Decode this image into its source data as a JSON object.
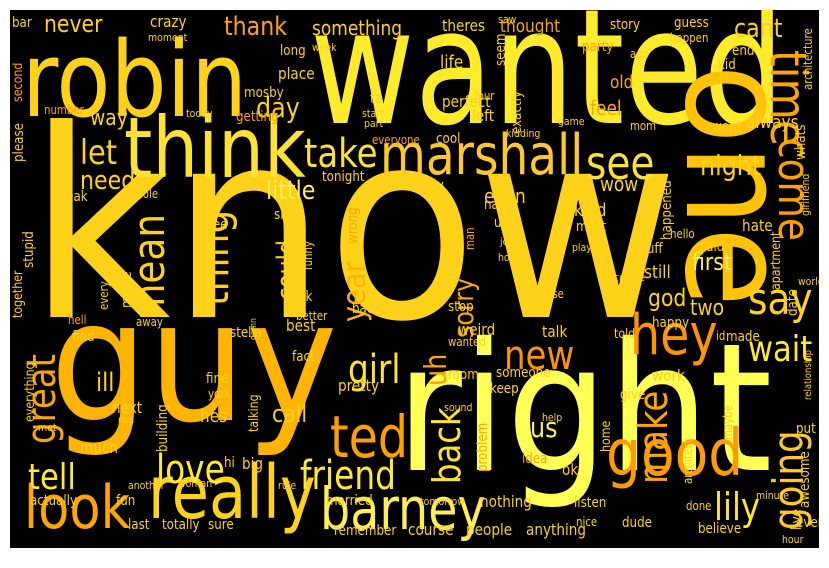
{
  "words": [
    {
      "text": "know",
      "color": "#ffd21a"
    },
    {
      "text": "right",
      "color": "#ffff55"
    },
    {
      "text": "guy",
      "color": "#ffb400"
    },
    {
      "text": "wanted",
      "color": "#ffea2c"
    },
    {
      "text": "one",
      "color": "#ffc30a"
    },
    {
      "text": "robin",
      "color": "#ffd21a"
    },
    {
      "text": "think",
      "color": "#ffe234"
    },
    {
      "text": "marshall",
      "color": "#ffc82a"
    },
    {
      "text": "really",
      "color": "#ffd21a"
    },
    {
      "text": "barney",
      "color": "#ffee55"
    },
    {
      "text": "good",
      "color": "#ff9a00"
    },
    {
      "text": "look",
      "color": "#ffa500"
    },
    {
      "text": "hey",
      "color": "#ff9400"
    },
    {
      "text": "say",
      "color": "#ffd21a"
    },
    {
      "text": "time",
      "color": "#ffa500"
    },
    {
      "text": "come",
      "color": "#ffa000"
    },
    {
      "text": "see",
      "color": "#ffe03a"
    },
    {
      "text": "take",
      "color": "#ffe03a"
    },
    {
      "text": "let",
      "color": "#ffd21a"
    },
    {
      "text": "need",
      "color": "#ffd21a"
    },
    {
      "text": "mean",
      "color": "#ffd21a"
    },
    {
      "text": "thing",
      "color": "#ffd21a"
    },
    {
      "text": "ted",
      "color": "#ffa000"
    },
    {
      "text": "friend",
      "color": "#ffea2c"
    },
    {
      "text": "love",
      "color": "#ffea2c"
    },
    {
      "text": "girl",
      "color": "#ffe234"
    },
    {
      "text": "great",
      "color": "#ffa500"
    },
    {
      "text": "tell",
      "color": "#ffea2c"
    },
    {
      "text": "going",
      "color": "#ffc82a"
    },
    {
      "text": "make",
      "color": "#ffa500"
    },
    {
      "text": "lily",
      "color": "#ffe234"
    },
    {
      "text": "new",
      "color": "#ff9400"
    },
    {
      "text": "back",
      "color": "#ffe234"
    },
    {
      "text": "wait",
      "color": "#ffea2c"
    },
    {
      "text": "night",
      "color": "#ffd21a"
    },
    {
      "text": "year",
      "color": "#ffb400"
    },
    {
      "text": "sorry",
      "color": "#ffa500"
    },
    {
      "text": "uh",
      "color": "#ffa500"
    },
    {
      "text": "never",
      "color": "#ffd21a"
    },
    {
      "text": "thank",
      "color": "#ffa500"
    },
    {
      "text": "something",
      "color": "#ffd21a"
    },
    {
      "text": "cant",
      "color": "#ffd21a"
    },
    {
      "text": "day",
      "color": "#ffd21a"
    },
    {
      "text": "little",
      "color": "#ffee55"
    },
    {
      "text": "could",
      "color": "#ffd21a"
    },
    {
      "text": "first",
      "color": "#ffee55"
    },
    {
      "text": "two",
      "color": "#ffd21a"
    },
    {
      "text": "god",
      "color": "#ffd21a"
    },
    {
      "text": "call",
      "color": "#ffd21a"
    },
    {
      "text": "us",
      "color": "#ffee55"
    },
    {
      "text": "ill",
      "color": "#ffd21a"
    },
    {
      "text": "always",
      "color": "#ffd21a"
    },
    {
      "text": "still",
      "color": "#ffd21a"
    },
    {
      "text": "even",
      "color": "#ffd21a"
    },
    {
      "text": "way",
      "color": "#ffd21a"
    },
    {
      "text": "thought",
      "color": "#ffa500"
    },
    {
      "text": "theres",
      "color": "#ffd21a"
    },
    {
      "text": "crazy",
      "color": "#ffd21a"
    },
    {
      "text": "moment",
      "color": "#ffd21a"
    },
    {
      "text": "bar",
      "color": "#ffd21a"
    },
    {
      "text": "story",
      "color": "#ffd21a"
    },
    {
      "text": "guess",
      "color": "#ffd21a"
    },
    {
      "text": "happen",
      "color": "#ffd21a"
    },
    {
      "text": "end",
      "color": "#ffd21a"
    },
    {
      "text": "kid",
      "color": "#ffd21a"
    },
    {
      "text": "architecture",
      "color": "#ffd21a"
    },
    {
      "text": "ago",
      "color": "#ffd21a"
    },
    {
      "text": "old",
      "color": "#ffa500"
    },
    {
      "text": "party",
      "color": "#ffa500"
    },
    {
      "text": "life",
      "color": "#ffd21a"
    },
    {
      "text": "seem",
      "color": "#ffd21a"
    },
    {
      "text": "exactly",
      "color": "#ffd21a"
    },
    {
      "text": "four",
      "color": "#ffd21a"
    },
    {
      "text": "perfect",
      "color": "#ffd21a"
    },
    {
      "text": "left",
      "color": "#ffd21a"
    },
    {
      "text": "saw",
      "color": "#ffd21a"
    },
    {
      "text": "long",
      "color": "#ffd21a"
    },
    {
      "text": "week",
      "color": "#ffd21a"
    },
    {
      "text": "place",
      "color": "#ffd21a"
    },
    {
      "text": "mosby",
      "color": "#ffd21a"
    },
    {
      "text": "getting",
      "color": "#ffa500"
    },
    {
      "text": "today",
      "color": "#ffd21a"
    },
    {
      "text": "ta",
      "color": "#ffd21a"
    },
    {
      "text": "start",
      "color": "#ffd21a"
    },
    {
      "text": "part",
      "color": "#ffd21a"
    },
    {
      "text": "second",
      "color": "#ffa500"
    },
    {
      "text": "number",
      "color": "#ffa500"
    },
    {
      "text": "please",
      "color": "#ffd21a"
    },
    {
      "text": "break",
      "color": "#ffd21a"
    },
    {
      "text": "whole",
      "color": "#ffd21a"
    },
    {
      "text": "tonight",
      "color": "#ffd21a"
    },
    {
      "text": "everyone",
      "color": "#ffa500"
    },
    {
      "text": "cool",
      "color": "#ffd21a"
    },
    {
      "text": "kidding",
      "color": "#ffd21a"
    },
    {
      "text": "game",
      "color": "#ffd21a"
    },
    {
      "text": "mom",
      "color": "#ffd21a"
    },
    {
      "text": "feel",
      "color": "#ffa500"
    },
    {
      "text": "went",
      "color": "#ffd21a"
    },
    {
      "text": "whats",
      "color": "#ffd21a"
    },
    {
      "text": "girlfriend",
      "color": "#ffd21a"
    },
    {
      "text": "wow",
      "color": "#ffd21a"
    },
    {
      "text": "zoey",
      "color": "#ffd21a"
    },
    {
      "text": "name",
      "color": "#ffd21a"
    },
    {
      "text": "kind",
      "color": "#ffd21a"
    },
    {
      "text": "must",
      "color": "#ffd21a"
    },
    {
      "text": "happened",
      "color": "#ffd21a"
    },
    {
      "text": "hate",
      "color": "#ffd21a"
    },
    {
      "text": "apartment",
      "color": "#ffd21a"
    },
    {
      "text": "world",
      "color": "#ffd21a"
    },
    {
      "text": "since",
      "color": "#ffd21a"
    },
    {
      "text": "three",
      "color": "#ffd21a"
    },
    {
      "text": "um",
      "color": "#ffd21a"
    },
    {
      "text": "job",
      "color": "#ffd21a"
    },
    {
      "text": "hot",
      "color": "#ffd21a"
    },
    {
      "text": "stuff",
      "color": "#ffd21a"
    },
    {
      "text": "said",
      "color": "#ffd21a"
    },
    {
      "text": "hello",
      "color": "#ffd21a"
    },
    {
      "text": "date",
      "color": "#ffd21a"
    },
    {
      "text": "couple",
      "color": "#ffd21a"
    },
    {
      "text": "play",
      "color": "#ffd21a"
    },
    {
      "text": "stupid",
      "color": "#ffd21a"
    },
    {
      "text": "together",
      "color": "#ffd21a"
    },
    {
      "text": "every",
      "color": "#ffd21a"
    },
    {
      "text": "movie",
      "color": "#ffd21a"
    },
    {
      "text": "wrong",
      "color": "#ffa500"
    },
    {
      "text": "man",
      "color": "#ffa500"
    },
    {
      "text": "funny",
      "color": "#ffd21a"
    },
    {
      "text": "ask",
      "color": "#ffd21a"
    },
    {
      "text": "bad",
      "color": "#ffd21a"
    },
    {
      "text": "cause",
      "color": "#ffd21a"
    },
    {
      "text": "lot",
      "color": "#ffd21a"
    },
    {
      "text": "stop",
      "color": "#ffd21a"
    },
    {
      "text": "weird",
      "color": "#ffd21a"
    },
    {
      "text": "talk",
      "color": "#ffd21a"
    },
    {
      "text": "told",
      "color": "#ffd21a"
    },
    {
      "text": "happy",
      "color": "#ffd21a"
    },
    {
      "text": "id",
      "color": "#ffd21a"
    },
    {
      "text": "made",
      "color": "#ffd21a"
    },
    {
      "text": "relationship",
      "color": "#ffd21a"
    },
    {
      "text": "hell",
      "color": "#ffa500"
    },
    {
      "text": "find",
      "color": "#ffd21a"
    },
    {
      "text": "away",
      "color": "#ffd21a"
    },
    {
      "text": "stella",
      "color": "#ffd21a"
    },
    {
      "text": "best",
      "color": "#ffd21a"
    },
    {
      "text": "better",
      "color": "#ffd21a"
    },
    {
      "text": "damn",
      "color": "#ffd21a"
    },
    {
      "text": "fact",
      "color": "#ffd21a"
    },
    {
      "text": "wanted",
      "color": "#ffd21a"
    },
    {
      "text": "room",
      "color": "#ffd21a"
    },
    {
      "text": "someone",
      "color": "#ffd21a"
    },
    {
      "text": "keep",
      "color": "#ffd21a"
    },
    {
      "text": "give",
      "color": "#ffd21a"
    },
    {
      "text": "work",
      "color": "#ffd21a"
    },
    {
      "text": "fine",
      "color": "#ffd21a"
    },
    {
      "text": "york",
      "color": "#ffd21a"
    },
    {
      "text": "everything",
      "color": "#ffd21a"
    },
    {
      "text": "next",
      "color": "#ffd21a"
    },
    {
      "text": "real",
      "color": "#ffd21a"
    },
    {
      "text": "building",
      "color": "#ffd21a"
    },
    {
      "text": "hes",
      "color": "#ffd21a"
    },
    {
      "text": "talking",
      "color": "#ffd21a"
    },
    {
      "text": "pretty",
      "color": "#ffd21a"
    },
    {
      "text": "sound",
      "color": "#ffd21a"
    },
    {
      "text": "home",
      "color": "#ffd21a"
    },
    {
      "text": "help",
      "color": "#ffd21a"
    },
    {
      "text": "architect",
      "color": "#ffd21a"
    },
    {
      "text": "maybe",
      "color": "#ffd21a"
    },
    {
      "text": "put",
      "color": "#ffd21a"
    },
    {
      "text": "awesome",
      "color": "#ffd21a"
    },
    {
      "text": "met",
      "color": "#ffd21a"
    },
    {
      "text": "much",
      "color": "#ffd21a"
    },
    {
      "text": "hi",
      "color": "#ffd21a"
    },
    {
      "text": "big",
      "color": "#ffd21a"
    },
    {
      "text": "problem",
      "color": "#ffa500"
    },
    {
      "text": "idea",
      "color": "#ffa500"
    },
    {
      "text": "ok",
      "color": "#ffd21a"
    },
    {
      "text": "rule",
      "color": "#ffd21a"
    },
    {
      "text": "another",
      "color": "#ffd21a"
    },
    {
      "text": "woman",
      "color": "#ffd21a"
    },
    {
      "text": "actually",
      "color": "#ffd21a"
    },
    {
      "text": "fun",
      "color": "#ffd21a"
    },
    {
      "text": "married",
      "color": "#ffd21a"
    },
    {
      "text": "tomorrow",
      "color": "#ffd21a"
    },
    {
      "text": "nothing",
      "color": "#ffd21a"
    },
    {
      "text": "listen",
      "color": "#ffd21a"
    },
    {
      "text": "done",
      "color": "#ffd21a"
    },
    {
      "text": "minute",
      "color": "#ffd21a"
    },
    {
      "text": "live",
      "color": "#ffd21a"
    },
    {
      "text": "last",
      "color": "#ffd21a"
    },
    {
      "text": "totally",
      "color": "#ffd21a"
    },
    {
      "text": "sure",
      "color": "#ffd21a"
    },
    {
      "text": "remember",
      "color": "#ffd21a"
    },
    {
      "text": "course",
      "color": "#ffd21a"
    },
    {
      "text": "people",
      "color": "#ffd21a"
    },
    {
      "text": "anything",
      "color": "#ffd21a"
    },
    {
      "text": "nice",
      "color": "#ffd21a"
    },
    {
      "text": "dude",
      "color": "#ffd21a"
    },
    {
      "text": "believe",
      "color": "#ffd21a"
    },
    {
      "text": "ever",
      "color": "#ffd21a"
    },
    {
      "text": "hour",
      "color": "#ffd21a"
    }
  ]
}
